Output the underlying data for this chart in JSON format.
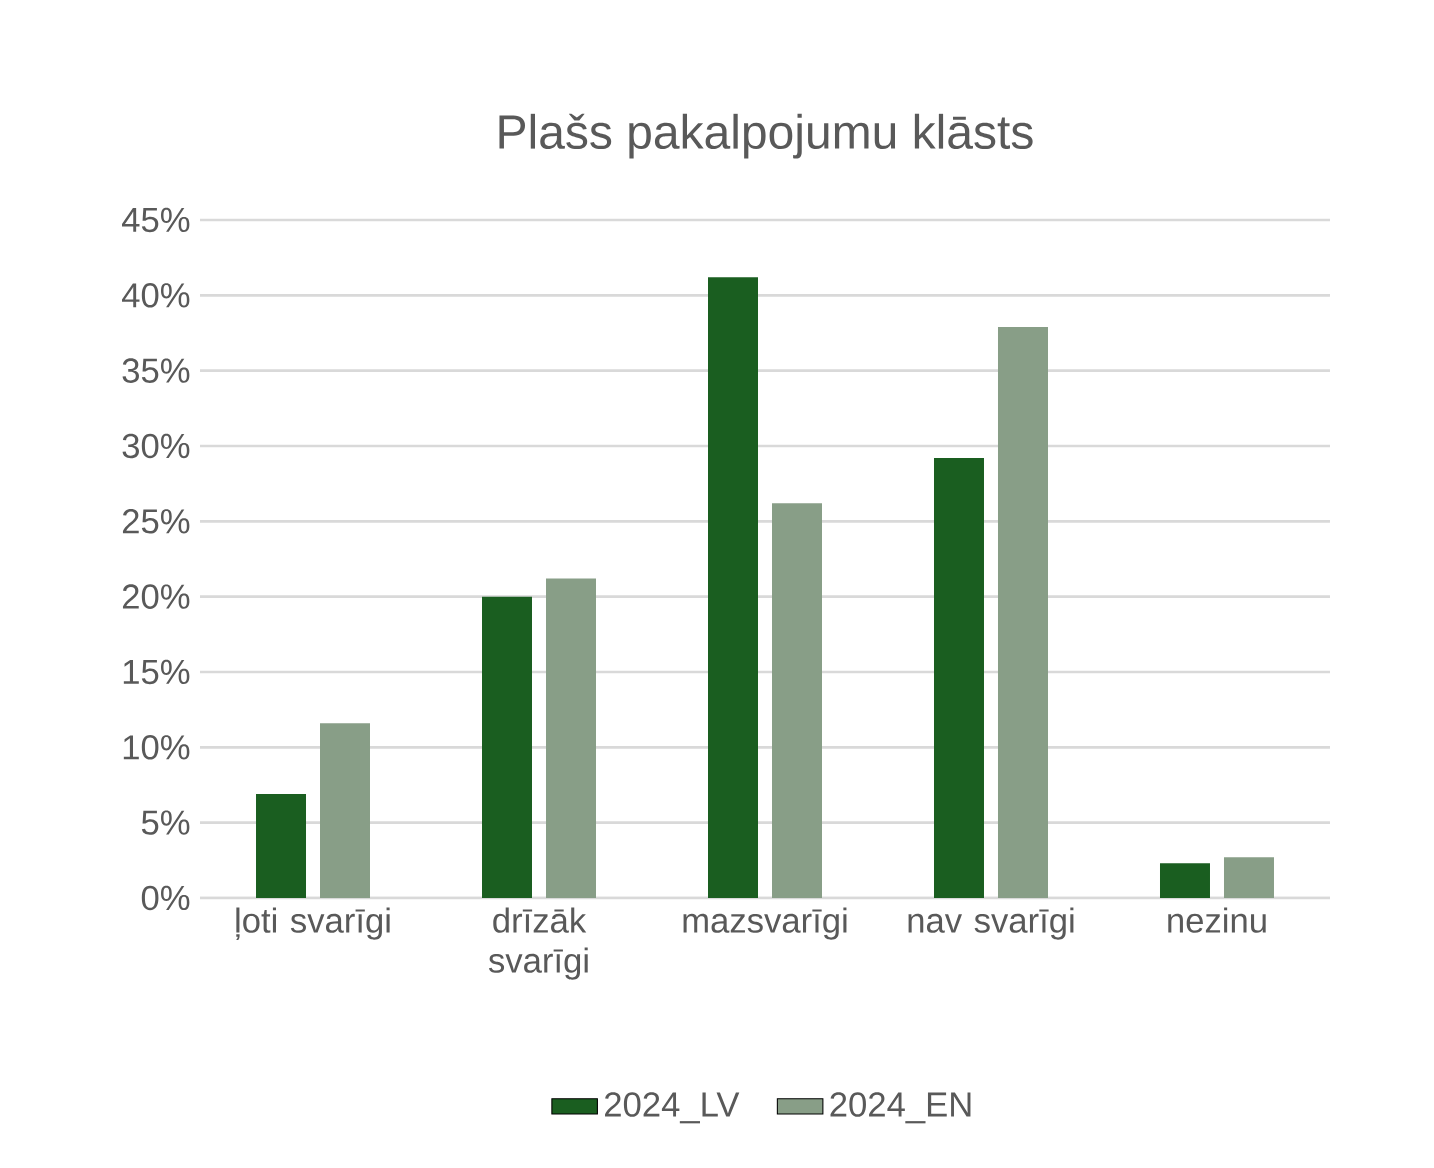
{
  "chart_data": {
    "type": "bar",
    "title": "Plašs pakalpojumu klāsts",
    "categories": [
      "ļoti svarīgi",
      "drīzāk svarīgi",
      "mazsvarīgi",
      "nav svarīgi",
      "nezinu"
    ],
    "series": [
      {
        "name": "2024_LV",
        "color": "#1a5e20",
        "values": [
          6.9,
          20.0,
          41.2,
          29.2,
          2.3
        ]
      },
      {
        "name": "2024_EN",
        "color": "#889e87",
        "values": [
          11.6,
          21.2,
          26.2,
          37.9,
          2.7
        ]
      }
    ],
    "ylim": [
      0,
      45
    ],
    "yticks": [
      {
        "value": 0,
        "label": "0%"
      },
      {
        "value": 5,
        "label": "5%"
      },
      {
        "value": 10,
        "label": "10%"
      },
      {
        "value": 15,
        "label": "15%"
      },
      {
        "value": 20,
        "label": "20%"
      },
      {
        "value": 25,
        "label": "25%"
      },
      {
        "value": 30,
        "label": "30%"
      },
      {
        "value": 35,
        "label": "35%"
      },
      {
        "value": 40,
        "label": "40%"
      },
      {
        "value": 45,
        "label": "45%"
      }
    ],
    "grid": "y",
    "legend": "bottom"
  }
}
